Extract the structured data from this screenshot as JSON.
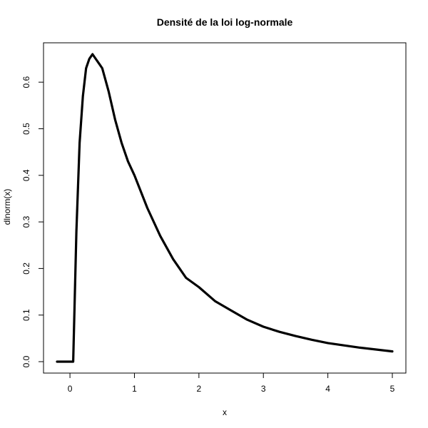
{
  "chart_data": {
    "type": "line",
    "title": "Densité de la loi log-normale",
    "xlabel": "x",
    "ylabel": "dlnorm(x)",
    "xlim": [
      -0.2,
      5
    ],
    "ylim": [
      0,
      0.66
    ],
    "x_ticks": [
      0,
      1,
      2,
      3,
      4,
      5
    ],
    "x_tick_labels": [
      "0",
      "1",
      "2",
      "3",
      "4",
      "5"
    ],
    "y_ticks": [
      0.0,
      0.1,
      0.2,
      0.3,
      0.4,
      0.5,
      0.6
    ],
    "y_tick_labels": [
      "0.0",
      "0.1",
      "0.2",
      "0.3",
      "0.4",
      "0.5",
      "0.6"
    ],
    "grid": false,
    "legend": "none",
    "series": [
      {
        "color": "#000000",
        "x": [
          -0.2,
          0.0,
          0.02,
          0.05,
          0.1,
          0.15,
          0.2,
          0.25,
          0.3,
          0.35,
          0.4,
          0.45,
          0.5,
          0.6,
          0.7,
          0.8,
          0.9,
          1.0,
          1.2,
          1.4,
          1.6,
          1.8,
          2.0,
          2.25,
          2.5,
          2.75,
          3.0,
          3.25,
          3.5,
          3.75,
          4.0,
          4.5,
          5.0
        ],
        "y": [
          0.0,
          0.0,
          0.0,
          0.0,
          0.28,
          0.47,
          0.57,
          0.63,
          0.65,
          0.66,
          0.65,
          0.64,
          0.63,
          0.58,
          0.52,
          0.47,
          0.43,
          0.4,
          0.33,
          0.27,
          0.22,
          0.18,
          0.16,
          0.13,
          0.11,
          0.09,
          0.075,
          0.064,
          0.055,
          0.047,
          0.04,
          0.03,
          0.022
        ]
      }
    ]
  }
}
